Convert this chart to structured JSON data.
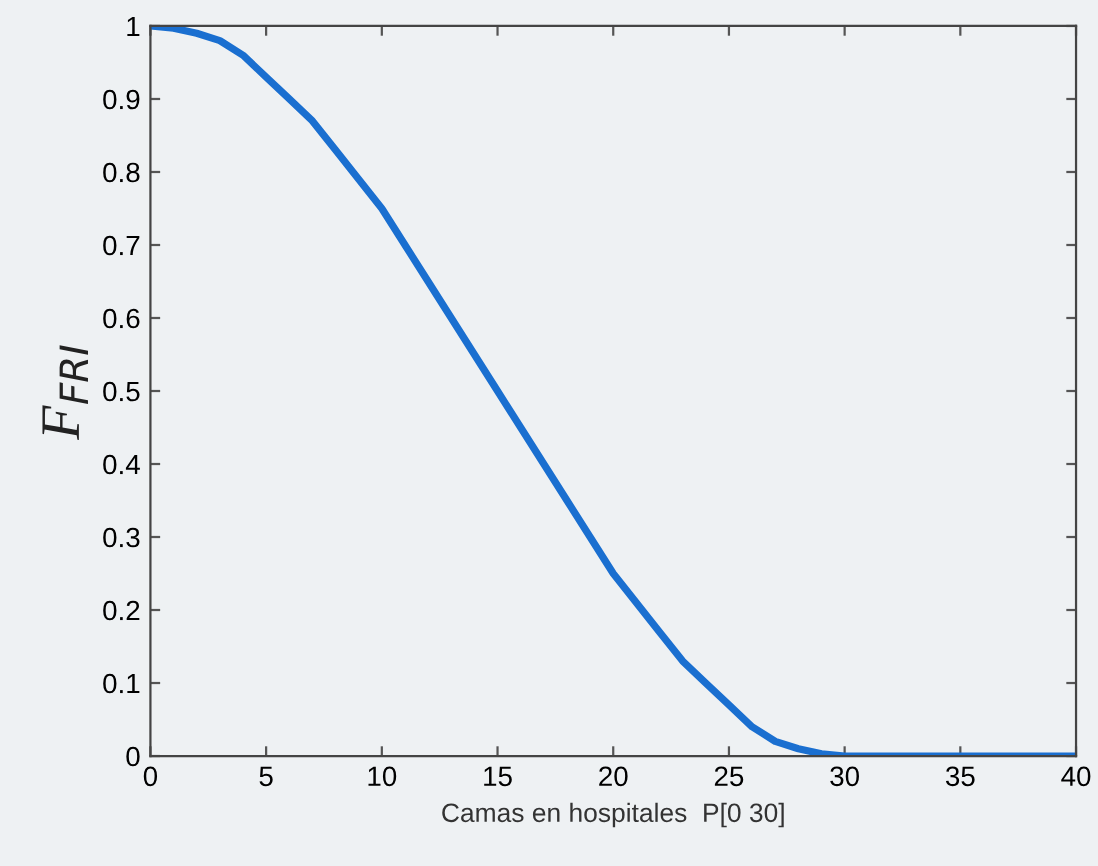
{
  "chart_data": {
    "type": "line",
    "xlabel": "Camas en hospitales  P[0 30]",
    "ylabel": "F$_{FRI}$",
    "x": [
      0,
      1,
      2,
      3,
      4,
      5,
      6,
      7,
      8,
      9,
      10,
      11,
      12,
      13,
      14,
      15,
      16,
      17,
      18,
      19,
      20,
      21,
      22,
      23,
      24,
      25,
      26,
      27,
      28,
      29,
      30,
      32,
      34,
      36,
      38,
      40
    ],
    "series": [
      {
        "color": "#1a6fd0",
        "values": [
          1,
          0.997,
          0.99,
          0.98,
          0.96,
          0.93,
          0.9,
          0.87,
          0.83,
          0.79,
          0.75,
          0.7,
          0.65,
          0.6,
          0.55,
          0.5,
          0.45,
          0.4,
          0.35,
          0.3,
          0.25,
          0.21,
          0.17,
          0.13,
          0.1,
          0.07,
          0.04,
          0.02,
          0.01,
          0.003,
          0,
          0,
          0,
          0,
          0,
          0
        ]
      }
    ],
    "xlim": [
      0,
      40
    ],
    "ylim": [
      0,
      1
    ],
    "xticks": [
      0,
      5,
      10,
      15,
      20,
      25,
      30,
      35,
      40
    ],
    "yticks": [
      0,
      0.1,
      0.2,
      0.3,
      0.4,
      0.5,
      0.6,
      0.7,
      0.8,
      0.9,
      1
    ],
    "grid": false,
    "marker": "none",
    "line_style": "solid"
  }
}
